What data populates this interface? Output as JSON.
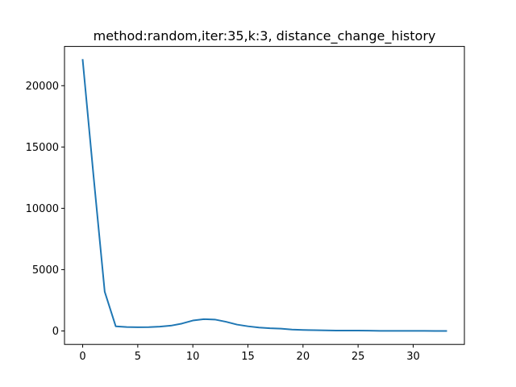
{
  "chart_data": {
    "type": "line",
    "title": "method:random,iter:35,k:3, distance_change_history",
    "xlabel": "",
    "ylabel": "",
    "xlim": [
      -1.65,
      34.65
    ],
    "ylim": [
      -1100,
      23200
    ],
    "x_ticks": [
      0,
      5,
      10,
      15,
      20,
      25,
      30
    ],
    "x_tick_labels": [
      "0",
      "5",
      "10",
      "15",
      "20",
      "25",
      "30"
    ],
    "y_ticks": [
      0,
      5000,
      10000,
      15000,
      20000
    ],
    "y_tick_labels": [
      "0",
      "5000",
      "10000",
      "15000",
      "20000"
    ],
    "grid": false,
    "series": [
      {
        "color": "#1f77b4",
        "x": [
          0,
          1,
          2,
          3,
          4,
          5,
          6,
          7,
          8,
          9,
          10,
          11,
          12,
          13,
          14,
          15,
          16,
          17,
          18,
          19,
          20,
          21,
          22,
          23,
          24,
          25,
          26,
          27,
          28,
          29,
          30,
          31,
          32,
          33
        ],
        "values": [
          22100,
          12500,
          3200,
          380,
          320,
          300,
          310,
          350,
          430,
          600,
          850,
          960,
          930,
          750,
          520,
          380,
          280,
          220,
          190,
          110,
          80,
          60,
          50,
          30,
          30,
          30,
          20,
          10,
          10,
          5,
          5,
          5,
          0,
          0
        ]
      }
    ]
  }
}
